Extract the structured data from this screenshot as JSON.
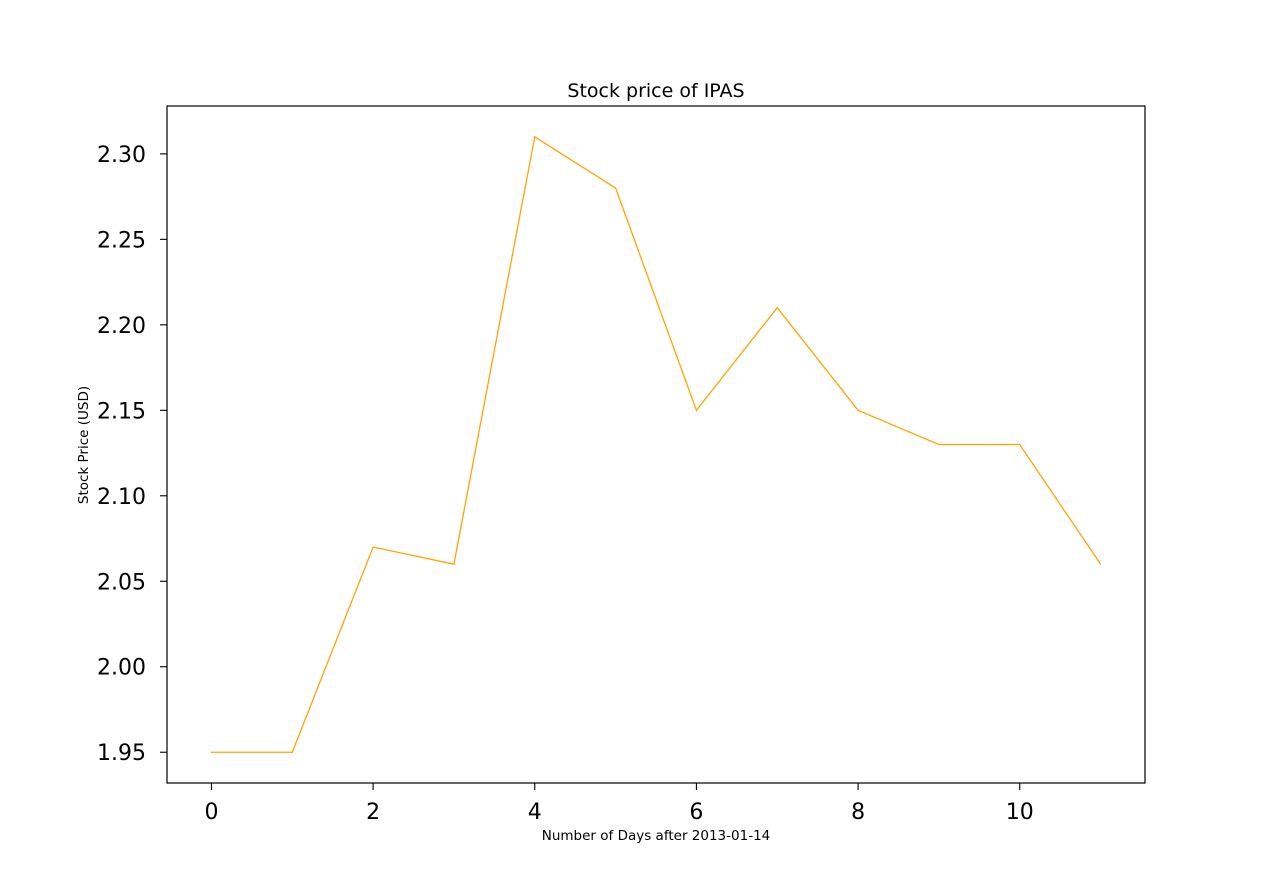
{
  "chart_data": {
    "type": "line",
    "title": "Stock price of IPAS",
    "xlabel": "Number of Days after 2013-01-14",
    "ylabel": "Stock Price (USD)",
    "x": [
      0,
      1,
      2,
      3,
      4,
      5,
      6,
      7,
      8,
      9,
      10,
      11
    ],
    "series": [
      {
        "values": [
          1.95,
          1.95,
          2.07,
          2.06,
          2.31,
          2.28,
          2.15,
          2.21,
          2.15,
          2.13,
          2.13,
          2.06
        ],
        "color": "#ffa500"
      }
    ],
    "xticks": [
      0,
      2,
      4,
      6,
      8,
      10
    ],
    "xtick_labels": [
      "0",
      "2",
      "4",
      "6",
      "8",
      "10"
    ],
    "yticks": [
      1.95,
      2.0,
      2.05,
      2.1,
      2.15,
      2.2,
      2.25,
      2.3
    ],
    "ytick_labels": [
      "1.95",
      "2.00",
      "2.05",
      "2.10",
      "2.15",
      "2.20",
      "2.25",
      "2.30"
    ],
    "xlim": [
      -0.55,
      11.55
    ],
    "ylim": [
      1.932,
      2.328
    ],
    "grid": false,
    "legend": false
  }
}
